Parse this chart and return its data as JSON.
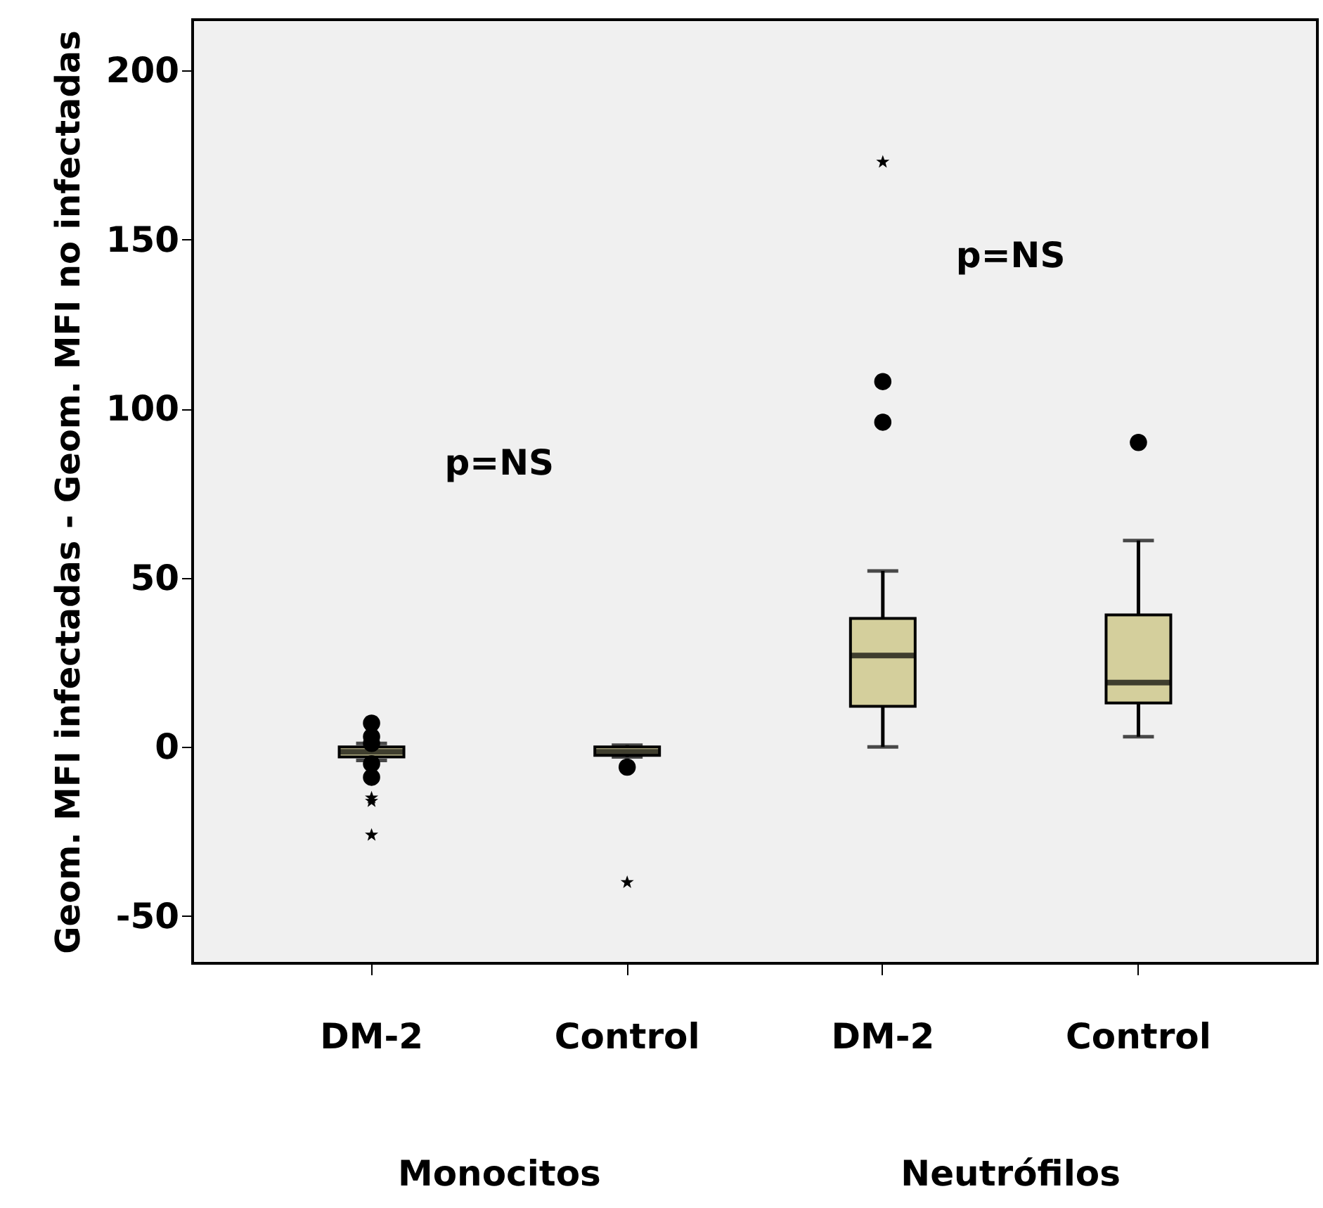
{
  "chart_data": {
    "type": "box",
    "ylabel": "Geom. MFI infectadas - Geom. MFI no infectadas",
    "categories": [
      "DM-2",
      "Control",
      "DM-2",
      "Control"
    ],
    "boxes": [
      {
        "low": -4,
        "q1": -3,
        "median": -1.5,
        "q3": 0,
        "high": 1,
        "outliers": [
          7,
          3,
          1,
          -5,
          -9,
          -15,
          -16,
          -26
        ]
      },
      {
        "low": -3,
        "q1": -2.5,
        "median": -1.5,
        "q3": 0,
        "high": 0.5,
        "outliers": [
          -6,
          -40
        ]
      },
      {
        "low": 0,
        "q1": 12,
        "median": 27,
        "q3": 38,
        "high": 52,
        "outliers": [
          96,
          108,
          173
        ]
      },
      {
        "low": 3,
        "q1": 13,
        "median": 19,
        "q3": 39,
        "high": 61,
        "outliers": [
          90
        ]
      }
    ],
    "color": "#d4cf9c",
    "ylim": [
      -64,
      215
    ],
    "yticks": [
      -50,
      0,
      50,
      100,
      150,
      200
    ],
    "annotations": [
      "p=NS",
      "p=NS",
      "Monocitos",
      "Neutrófilos"
    ]
  }
}
